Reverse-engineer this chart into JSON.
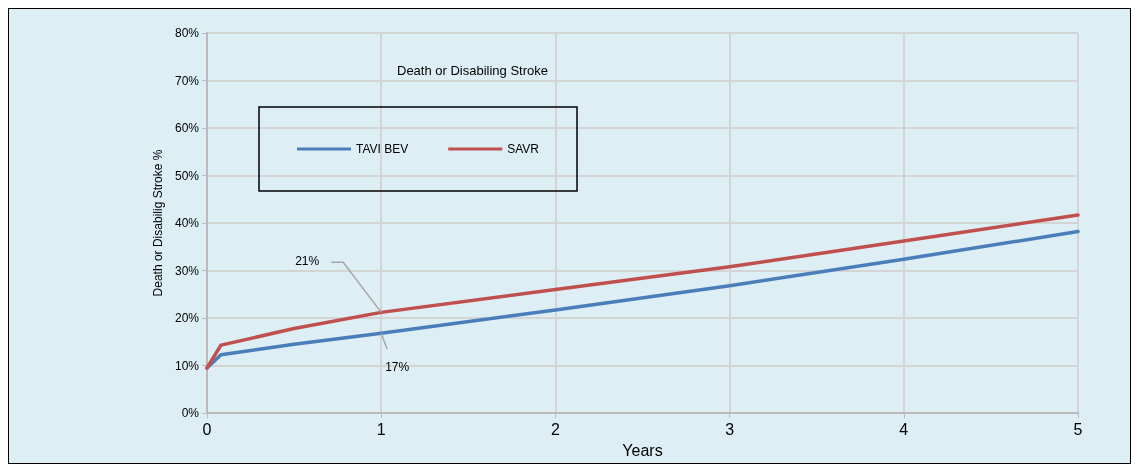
{
  "chart_data": {
    "type": "line",
    "title": "Death or Disabiling Stroke",
    "xlabel": "Years",
    "ylabel": "Death or Disabilig Stroke %",
    "series": [
      {
        "name": "TAVI BEV",
        "color": "#4a7ebb",
        "x": [
          0,
          0.08,
          0.5,
          1,
          2,
          3,
          4,
          5
        ],
        "values": [
          9.5,
          12.3,
          14.5,
          16.8,
          21.7,
          26.8,
          32.4,
          38.2
        ]
      },
      {
        "name": "SAVR",
        "color": "#c0504d",
        "x": [
          0,
          0.08,
          0.5,
          1,
          2,
          3,
          4,
          5
        ],
        "values": [
          9.5,
          14.3,
          17.8,
          21.2,
          26.0,
          30.8,
          36.2,
          41.7
        ]
      }
    ],
    "annotations": [
      {
        "text": "21%",
        "x": 1,
        "y": 21.2
      },
      {
        "text": "17%",
        "x": 1,
        "y": 16.8
      }
    ],
    "xlim": [
      0,
      5
    ],
    "xticks": [
      0,
      1,
      2,
      3,
      4,
      5
    ],
    "ylim": [
      0,
      80
    ],
    "yticks": [
      {
        "value": 0,
        "label": "0%"
      },
      {
        "value": 10,
        "label": "10%"
      },
      {
        "value": 20,
        "label": "20%"
      },
      {
        "value": 30,
        "label": "30%"
      },
      {
        "value": 40,
        "label": "40%"
      },
      {
        "value": 50,
        "label": "50%"
      },
      {
        "value": 60,
        "label": "60%"
      },
      {
        "value": 70,
        "label": "70%"
      },
      {
        "value": 80,
        "label": "80%"
      }
    ],
    "grid": true,
    "legend": "top left",
    "marker": "none",
    "line_style": "solid"
  }
}
